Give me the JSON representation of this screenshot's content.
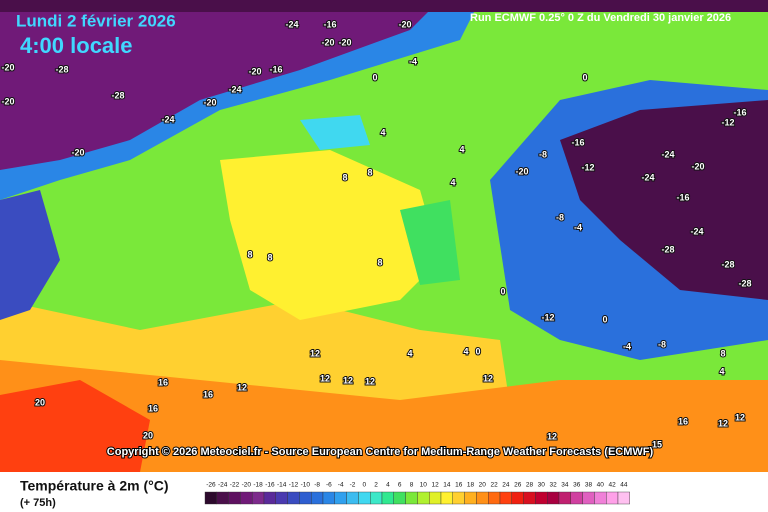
{
  "header": {
    "date": "Lundi 2 février 2026",
    "time": "4:00 locale",
    "run": "Run ECMWF 0.25° 0 Z du Vendredi 30 janvier 2026"
  },
  "copyright": "Copyright © 2026 Meteociel.fr - Source European Centre for Medium-Range Weather Forecasts (ECMWF)",
  "legend": {
    "title": "Température à 2m (°C)",
    "lead": "(+ 75h)",
    "values": [
      -26,
      -24,
      -22,
      -20,
      -18,
      -16,
      -14,
      -12,
      -10,
      -8,
      -6,
      -4,
      -2,
      0,
      2,
      4,
      6,
      8,
      10,
      12,
      14,
      16,
      18,
      20,
      22,
      24,
      26,
      28,
      30,
      32,
      34,
      36,
      38,
      40,
      42,
      44
    ],
    "colors": [
      "#2d0a2d",
      "#4a0f4a",
      "#5e1060",
      "#701a78",
      "#7d2a8c",
      "#5a2a9a",
      "#4a3ab0",
      "#3a4cc0",
      "#2e5ed0",
      "#2a70dc",
      "#2a86e6",
      "#30a0ee",
      "#3cbcf0",
      "#40d8f0",
      "#3ce8c8",
      "#30e890",
      "#40e060",
      "#7ae83a",
      "#b0f030",
      "#e0f028",
      "#fff030",
      "#ffd030",
      "#ffb020",
      "#ff9018",
      "#ff6a10",
      "#ff4010",
      "#f02010",
      "#d81020",
      "#c00030",
      "#a80040",
      "#c02070",
      "#d040a0",
      "#e060c0",
      "#f080d8",
      "#ffa0e8",
      "#ffc0f0"
    ]
  },
  "map_labels": [
    -28,
    -20,
    -16,
    -24,
    -20,
    -20,
    -16,
    -20,
    -24,
    -20,
    -28,
    -24,
    -20,
    -20,
    -20,
    0,
    -4,
    0,
    4,
    4,
    8,
    8,
    8,
    8,
    8,
    4,
    -16,
    -12,
    -8,
    -20,
    -24,
    -20,
    -12,
    -16,
    -24,
    -16,
    -28,
    -28,
    -28,
    -24,
    -8,
    -4,
    0,
    -12,
    0,
    -4,
    -8,
    8,
    4,
    12,
    12,
    12,
    12,
    12,
    16,
    16,
    16,
    20,
    20,
    12,
    12,
    16,
    12,
    12,
    15,
    4,
    4,
    0
  ]
}
